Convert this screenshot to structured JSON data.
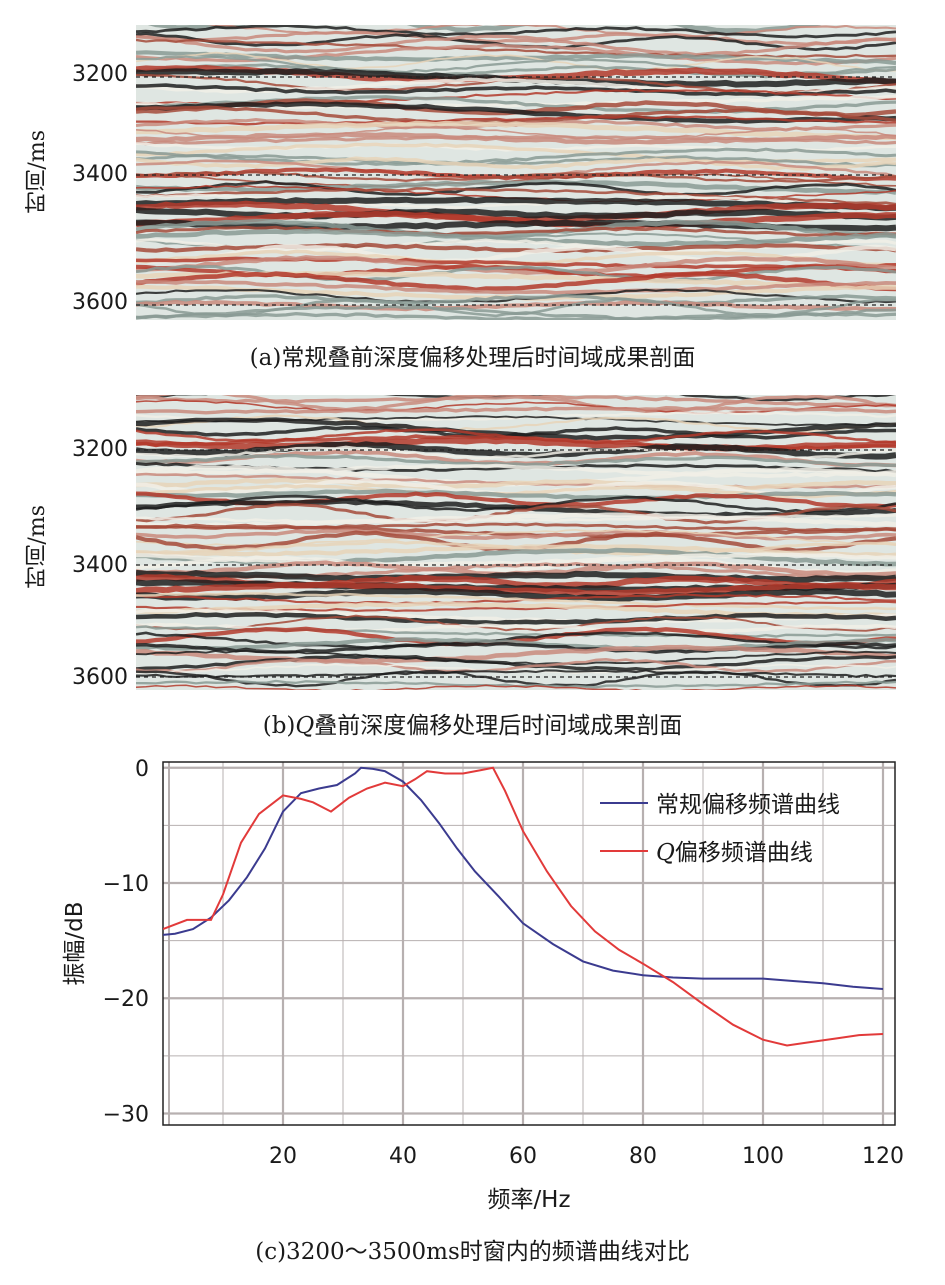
{
  "panel_a": {
    "caption": "(a)常规叠前深度偏移处理后时间域成果剖面",
    "ylabel": "时间/ms",
    "ticks": [
      "3200",
      "3400",
      "3600"
    ]
  },
  "panel_b": {
    "caption_prefix": "(b)",
    "caption_q": "Q",
    "caption_rest": "叠前深度偏移处理后时间域成果剖面",
    "ylabel": "时间/ms",
    "ticks": [
      "3200",
      "3400",
      "3600"
    ]
  },
  "panel_c": {
    "caption": "(c)3200～3500ms时窗内的频谱曲线对比"
  },
  "colors": {
    "seis_red": "#b3392b",
    "seis_dark": "#1e1e1e",
    "seis_light": "#dfe6e2",
    "series_blue": "#3b3b8f",
    "series_red": "#e23a3a",
    "grid": "#b7b0b0"
  },
  "chart_data": [
    {
      "type": "heatmap",
      "description_axis": "time",
      "ylabel": "时间/ms",
      "yticks": [
        3200,
        3400,
        3600
      ],
      "ylim": [
        3100,
        3630
      ]
    },
    {
      "type": "heatmap",
      "ylabel": "时间/ms",
      "yticks": [
        3200,
        3400,
        3600
      ],
      "ylim": [
        3100,
        3630
      ]
    },
    {
      "type": "line",
      "title": "",
      "xlabel": "频率/Hz",
      "ylabel": "振幅/dB",
      "xlim": [
        0,
        122
      ],
      "ylim": [
        -31,
        0.5
      ],
      "xticks": [
        20,
        40,
        60,
        80,
        100,
        120
      ],
      "yticks": [
        0,
        -10,
        -20,
        -30
      ],
      "grid": true,
      "legend_position": "top-right",
      "series": [
        {
          "name": "常规偏移频谱曲线",
          "legend_q": "",
          "color": "#3b3b8f",
          "x": [
            0,
            2,
            5,
            8,
            11,
            14,
            17,
            20,
            23,
            26,
            29,
            32,
            33,
            35,
            37,
            40,
            43,
            46,
            49,
            52,
            56,
            60,
            65,
            70,
            75,
            80,
            85,
            90,
            95,
            100,
            105,
            110,
            115,
            120
          ],
          "y": [
            -14.5,
            -14.4,
            -14.0,
            -13.0,
            -11.5,
            -9.5,
            -7.0,
            -3.8,
            -2.2,
            -1.8,
            -1.5,
            -0.5,
            0.0,
            -0.1,
            -0.3,
            -1.2,
            -2.8,
            -4.8,
            -7.0,
            -9.0,
            -11.2,
            -13.5,
            -15.3,
            -16.8,
            -17.6,
            -18.0,
            -18.2,
            -18.3,
            -18.3,
            -18.3,
            -18.5,
            -18.7,
            -19.0,
            -19.2
          ]
        },
        {
          "name": "偏移频谱曲线",
          "legend_q": "Q",
          "color": "#e23a3a",
          "x": [
            0,
            4,
            8,
            10,
            13,
            16,
            20,
            23,
            25,
            28,
            31,
            34,
            37,
            40,
            42,
            44,
            47,
            50,
            53,
            55,
            57,
            60,
            64,
            68,
            72,
            76,
            80,
            85,
            90,
            95,
            100,
            104,
            108,
            112,
            116,
            120
          ],
          "y": [
            -14.0,
            -13.2,
            -13.2,
            -11.0,
            -6.5,
            -4.0,
            -2.4,
            -2.7,
            -3.0,
            -3.8,
            -2.6,
            -1.8,
            -1.3,
            -1.6,
            -1.0,
            -0.3,
            -0.5,
            -0.5,
            -0.2,
            0.0,
            -2.0,
            -5.5,
            -9.0,
            -12.0,
            -14.2,
            -15.8,
            -17.0,
            -18.6,
            -20.5,
            -22.3,
            -23.6,
            -24.1,
            -23.8,
            -23.5,
            -23.2,
            -23.1
          ]
        }
      ]
    }
  ]
}
